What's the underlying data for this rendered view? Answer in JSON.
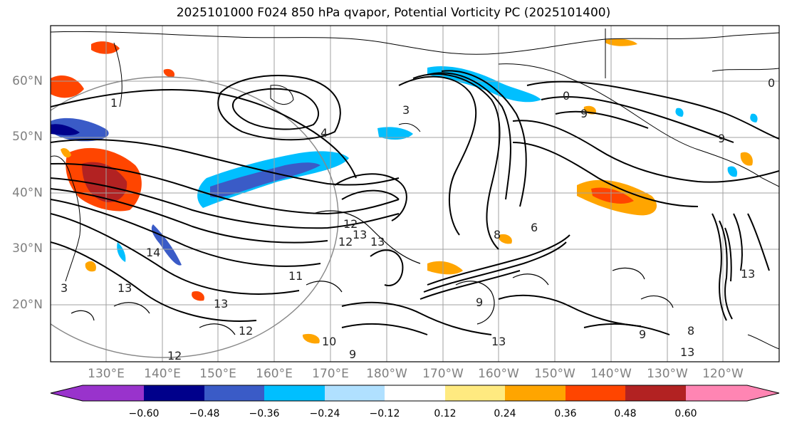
{
  "title": "2025101000 F024 850 hPa qvapor, Potential Vorticity PC (2025101400)",
  "lat_labels": [
    "60°N",
    "50°N",
    "40°N",
    "30°N",
    "20°N"
  ],
  "lon_labels": [
    "130°E",
    "140°E",
    "150°E",
    "160°E",
    "170°E",
    "180°W",
    "170°W",
    "160°W",
    "150°W",
    "140°W",
    "130°W",
    "120°W"
  ],
  "colorbar": {
    "colors": [
      "#9933cc",
      "#00008b",
      "#3a5bc7",
      "#00bfff",
      "#b0e0ff",
      "#ffffff",
      "#ffea80",
      "#ffa500",
      "#ff4500",
      "#b22222",
      "#ff85b3"
    ],
    "tick_labels": [
      "−0.60",
      "−0.48",
      "−0.36",
      "−0.24",
      "−0.12",
      "0.12",
      "0.24",
      "0.36",
      "0.48",
      "0.60"
    ]
  },
  "contour_labels": [
    "1",
    "3",
    "4",
    "0",
    "9",
    "12",
    "13",
    "14",
    "13",
    "12",
    "10",
    "9",
    "13",
    "12",
    "11",
    "13",
    "13",
    "8",
    "9",
    "0",
    "9",
    "13",
    "8",
    "9",
    "6",
    "3",
    "12",
    "13"
  ],
  "colors": {
    "grid": "#a0a0a0",
    "axis_text": "#808080",
    "contour": "#000000",
    "coast": "#000000"
  }
}
